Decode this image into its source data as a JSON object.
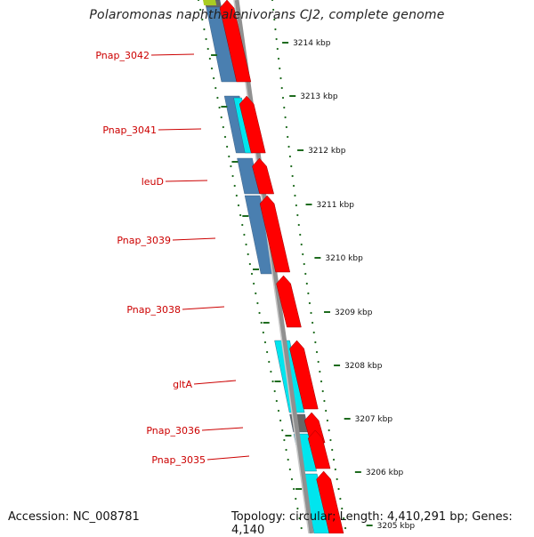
{
  "title": "Polaromonas naphthalenivorans CJ2, complete genome",
  "footer": {
    "accession": "Accession: NC_008781",
    "topology": "Topology: circular; Length: 4,410,291 bp; Genes: 4,140"
  },
  "colors": {
    "forward_cds": "#ff0000",
    "blue_block": "#4a7fb0",
    "cyan_block": "#00e5ee",
    "gray_block": "#666666",
    "backbone": "#909090",
    "tick": "#1e6b1e",
    "label": "#cc0000"
  },
  "ticks": [
    "3214 kbp",
    "3213 kbp",
    "3212 kbp",
    "3211 kbp",
    "3210 kbp",
    "3209 kbp",
    "3208 kbp",
    "3207 kbp",
    "3206 kbp",
    "3205 kbp"
  ],
  "gene_labels": [
    "Pnap_3042",
    "Pnap_3041",
    "leuD",
    "Pnap_3039",
    "Pnap_3038",
    "gltA",
    "Pnap_3036",
    "Pnap_3035"
  ]
}
